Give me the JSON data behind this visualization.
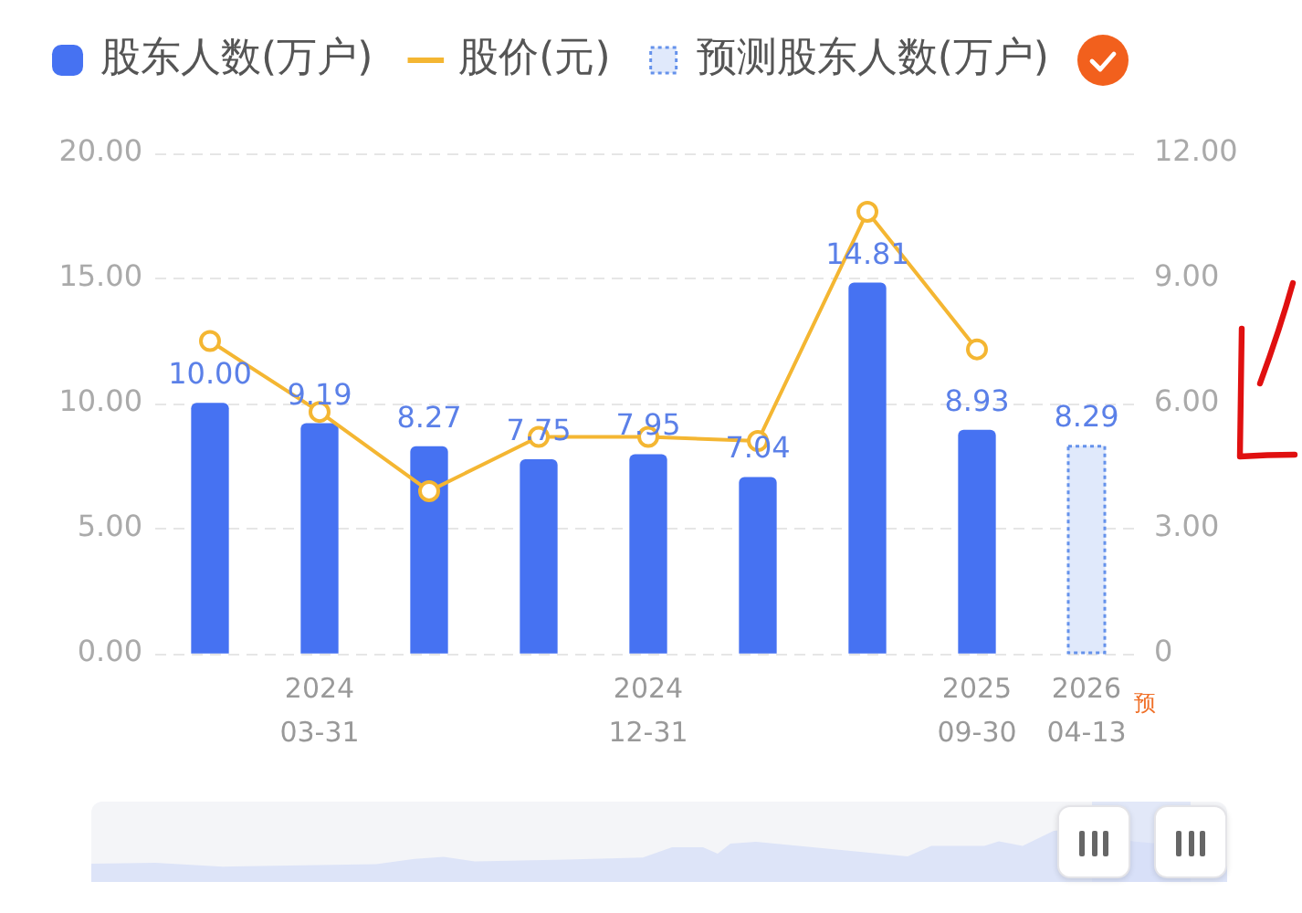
{
  "chart_data": {
    "type": "bar",
    "categories": [
      null,
      "2024\n03-31",
      null,
      null,
      "2024\n12-31",
      null,
      null,
      "2025\n09-30",
      "2026\n04-13"
    ],
    "series": [
      {
        "name": "股东人数(万户)",
        "color": "#4672f2",
        "values": [
          10.0,
          9.19,
          8.27,
          7.75,
          7.95,
          7.04,
          14.81,
          8.93,
          null
        ],
        "value_labels": [
          "10.00",
          "9.19",
          "8.27",
          "7.75",
          "7.95",
          "7.04",
          "14.81",
          "8.93",
          null
        ]
      },
      {
        "name": "股价(元)",
        "type": "line",
        "axis": "y2",
        "color": "#f4b632",
        "values": [
          7.5,
          5.8,
          3.9,
          5.2,
          5.2,
          5.1,
          10.6,
          7.3,
          null
        ]
      },
      {
        "name": "预测股东人数(万户)",
        "color": "#e0e9fb",
        "line_style": "dotted",
        "values": [
          null,
          null,
          null,
          null,
          null,
          null,
          null,
          null,
          8.29
        ],
        "value_labels": [
          null,
          null,
          null,
          null,
          null,
          null,
          null,
          null,
          "8.29"
        ]
      }
    ],
    "ylim": [
      0,
      20
    ],
    "yticks": [
      {
        "value": 0,
        "label": "0.00"
      },
      {
        "value": 5,
        "label": "5.00"
      },
      {
        "value": 10,
        "label": "10.00"
      },
      {
        "value": 15,
        "label": "15.00"
      },
      {
        "value": 20,
        "label": "20.00"
      }
    ],
    "y2lim": [
      0,
      12
    ],
    "y2ticks": [
      0,
      {
        "value": 3,
        "label": "3.00"
      },
      {
        "value": 6,
        "label": "6.00"
      },
      {
        "value": 9,
        "label": "9.00"
      },
      {
        "value": 12,
        "label": "12.00"
      }
    ],
    "grid": "y",
    "legend": "top left",
    "marker": "circle",
    "annotations": [
      "预"
    ]
  }
}
